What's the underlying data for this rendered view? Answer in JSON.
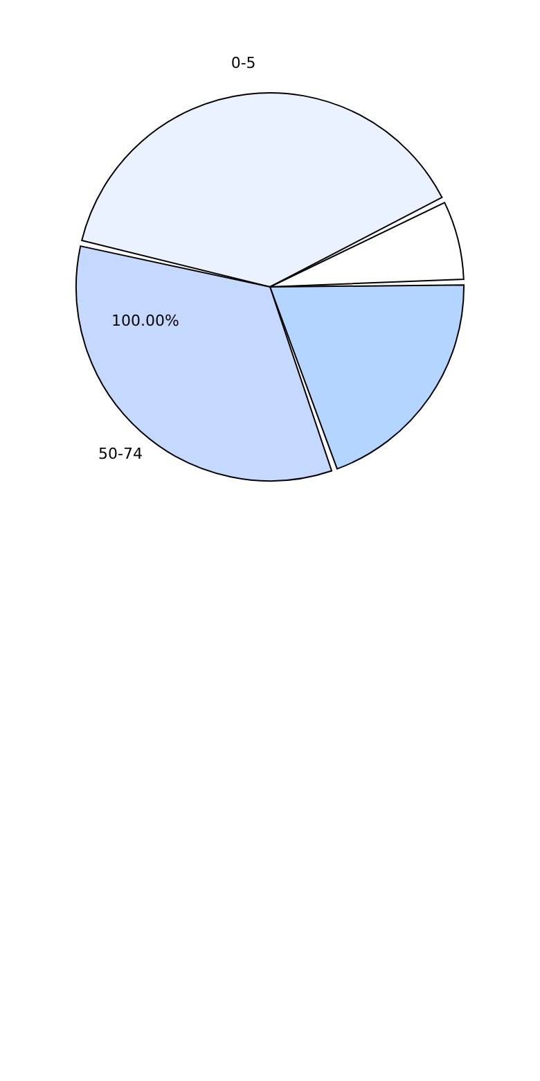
{
  "chart_data": {
    "type": "pie",
    "categories": [
      "0-5",
      null,
      null,
      "50-74"
    ],
    "values": [
      39,
      7,
      20,
      34
    ],
    "colors": [
      "#eaf2ff",
      "#ffffff",
      "#b3d5ff",
      "#c5d9ff"
    ],
    "annotations": [
      "100.00%"
    ],
    "legend": false
  }
}
